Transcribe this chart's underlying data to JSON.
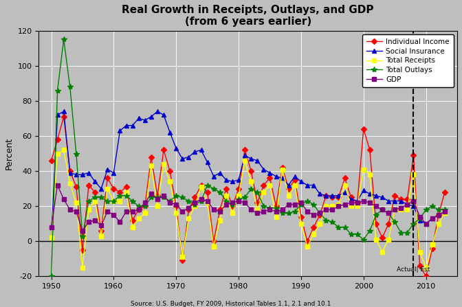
{
  "title": "Real Growth in Receipts, Outlays, and GDP",
  "subtitle": "(from 6 years earlier)",
  "ylabel": "Percent",
  "source": "Source: U.S. Budget, FY 2009, Historical Tables 1.1, 2.1 and 10.1",
  "ylim": [
    -20,
    120
  ],
  "xlim": [
    1948,
    2015
  ],
  "dashed_line_x": 2008,
  "background_color": "#bebebe",
  "grid_color": "#ffffff",
  "fig_facecolor": "#bebebe",
  "years": [
    1950,
    1951,
    1952,
    1953,
    1954,
    1955,
    1956,
    1957,
    1958,
    1959,
    1960,
    1961,
    1962,
    1963,
    1964,
    1965,
    1966,
    1967,
    1968,
    1969,
    1970,
    1971,
    1972,
    1973,
    1974,
    1975,
    1976,
    1977,
    1978,
    1979,
    1980,
    1981,
    1982,
    1983,
    1984,
    1985,
    1986,
    1987,
    1988,
    1989,
    1990,
    1991,
    1992,
    1993,
    1994,
    1995,
    1996,
    1997,
    1998,
    1999,
    2000,
    2001,
    2002,
    2003,
    2004,
    2005,
    2006,
    2007,
    2008,
    2009,
    2010,
    2011,
    2012,
    2013
  ],
  "individual_income": [
    46,
    58,
    71,
    40,
    31,
    -5,
    32,
    28,
    6,
    36,
    30,
    28,
    31,
    12,
    18,
    20,
    48,
    26,
    52,
    40,
    20,
    -11,
    18,
    25,
    32,
    28,
    0,
    18,
    30,
    20,
    30,
    52,
    40,
    22,
    32,
    36,
    20,
    42,
    30,
    35,
    14,
    0,
    8,
    15,
    26,
    25,
    25,
    36,
    25,
    22,
    64,
    52,
    10,
    2,
    10,
    26,
    24,
    24,
    49,
    -14,
    -20,
    -4,
    15,
    28
  ],
  "social_insurance": [
    2,
    72,
    74,
    39,
    38,
    38,
    39,
    34,
    30,
    41,
    39,
    63,
    66,
    66,
    70,
    69,
    71,
    74,
    72,
    62,
    53,
    47,
    48,
    51,
    52,
    45,
    37,
    39,
    35,
    34,
    35,
    49,
    47,
    46,
    41,
    39,
    37,
    36,
    32,
    37,
    34,
    32,
    32,
    27,
    26,
    26,
    26,
    28,
    24,
    23,
    29,
    27,
    26,
    25,
    23,
    23,
    23,
    21,
    20,
    12,
    10,
    13,
    15,
    17
  ],
  "total_receipts": [
    2,
    50,
    52,
    33,
    22,
    -15,
    18,
    23,
    3,
    30,
    23,
    23,
    28,
    8,
    13,
    16,
    43,
    20,
    44,
    34,
    16,
    -9,
    13,
    20,
    31,
    22,
    -3,
    12,
    26,
    16,
    26,
    46,
    34,
    18,
    28,
    32,
    14,
    41,
    26,
    32,
    10,
    -3,
    4,
    10,
    20,
    20,
    21,
    32,
    20,
    20,
    41,
    38,
    1,
    -6,
    1,
    18,
    18,
    18,
    38,
    -6,
    -15,
    -2,
    10,
    16
  ],
  "total_outlays": [
    -20,
    86,
    115,
    88,
    50,
    3,
    23,
    25,
    25,
    23,
    23,
    26,
    26,
    23,
    20,
    20,
    25,
    25,
    25,
    23,
    26,
    25,
    23,
    21,
    23,
    32,
    30,
    28,
    23,
    21,
    24,
    25,
    30,
    28,
    20,
    19,
    19,
    16,
    16,
    17,
    21,
    23,
    21,
    16,
    12,
    11,
    8,
    8,
    4,
    4,
    1,
    6,
    15,
    18,
    16,
    11,
    5,
    5,
    10,
    13,
    18,
    20,
    18,
    18
  ],
  "gdp": [
    8,
    32,
    24,
    18,
    17,
    6,
    11,
    12,
    9,
    17,
    15,
    11,
    17,
    17,
    18,
    22,
    27,
    24,
    26,
    22,
    21,
    17,
    19,
    22,
    24,
    23,
    18,
    17,
    21,
    22,
    23,
    22,
    18,
    16,
    17,
    18,
    17,
    18,
    21,
    21,
    22,
    17,
    15,
    16,
    18,
    18,
    20,
    21,
    22,
    22,
    23,
    22,
    20,
    18,
    16,
    18,
    19,
    21,
    23,
    14,
    10,
    13,
    15,
    17
  ],
  "series": [
    {
      "key": "individual_income",
      "name": "Individual Income",
      "color": "#ff0000",
      "marker": "D",
      "markersize": 4,
      "lw": 1.0
    },
    {
      "key": "social_insurance",
      "name": "Social Insurance",
      "color": "#0000cc",
      "marker": "^",
      "markersize": 5,
      "lw": 1.0
    },
    {
      "key": "total_receipts",
      "name": "Total Receipts",
      "color": "#ffff00",
      "marker": "s",
      "markersize": 4,
      "lw": 1.0
    },
    {
      "key": "total_outlays",
      "name": "Total Outlays",
      "color": "#008000",
      "marker": "*",
      "markersize": 6,
      "lw": 1.0
    },
    {
      "key": "gdp",
      "name": "GDP",
      "color": "#800080",
      "marker": "s",
      "markersize": 4,
      "lw": 1.0
    }
  ],
  "xticks": [
    1950,
    1960,
    1970,
    1980,
    1990,
    2000,
    2010
  ],
  "yticks": [
    -20,
    0,
    20,
    40,
    60,
    80,
    100,
    120
  ]
}
